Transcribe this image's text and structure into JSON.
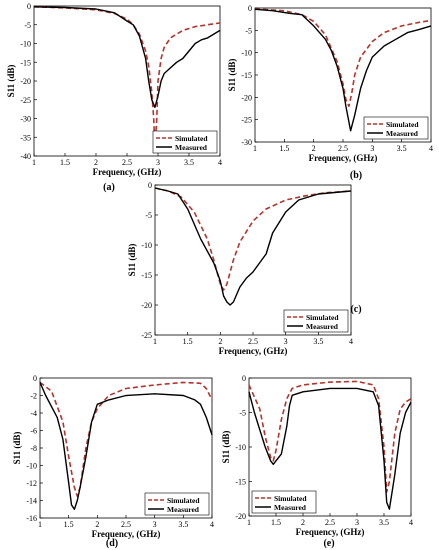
{
  "colors": {
    "simulated": "#b5332a",
    "measured": "#000000",
    "frame": "#000000",
    "bg": "#ffffff"
  },
  "chart_data": [
    {
      "id": "a",
      "type": "line",
      "panel_label": "(a)",
      "xlabel": "Frequency, (GHz)",
      "ylabel": "S11 (dB)",
      "xlim": [
        1,
        4
      ],
      "ylim": [
        -40,
        0
      ],
      "xticks": [
        "1",
        "1.5",
        "2",
        "2.5",
        "3",
        "3.5",
        "4"
      ],
      "yticks": [
        "0",
        "-5",
        "-10",
        "-15",
        "-20",
        "-25",
        "-30",
        "-35",
        "-40"
      ],
      "legend": {
        "position": "bottom-right",
        "entries": [
          "Simulated",
          "Measured"
        ]
      },
      "series": [
        {
          "name": "Simulated",
          "x": [
            1,
            1.5,
            2,
            2.3,
            2.5,
            2.6,
            2.7,
            2.8,
            2.85,
            2.9,
            2.93,
            2.95,
            2.98,
            3.0,
            3.05,
            3.1,
            3.2,
            3.4,
            3.6,
            3.8,
            4.0
          ],
          "y": [
            -0.2,
            -0.5,
            -1.0,
            -2.0,
            -3.5,
            -5.0,
            -7.5,
            -12,
            -16,
            -23,
            -30,
            -38,
            -30,
            -20,
            -14,
            -11,
            -8.5,
            -6.5,
            -5.5,
            -5.0,
            -4.5
          ]
        },
        {
          "name": "Measured",
          "x": [
            1,
            1.5,
            2,
            2.2,
            2.3,
            2.5,
            2.6,
            2.7,
            2.8,
            2.85,
            2.9,
            2.95,
            3.0,
            3.05,
            3.1,
            3.2,
            3.3,
            3.4,
            3.5,
            3.6,
            3.7,
            3.8,
            3.9,
            4.0
          ],
          "y": [
            -0.2,
            -0.4,
            -0.8,
            -1.5,
            -1.8,
            -4.0,
            -5.0,
            -8.0,
            -14,
            -20,
            -25,
            -27,
            -24,
            -20,
            -18,
            -16.5,
            -15,
            -14,
            -12,
            -10,
            -9,
            -8.5,
            -7.5,
            -6.5
          ]
        }
      ]
    },
    {
      "id": "b",
      "type": "line",
      "panel_label": "(b)",
      "xlabel": "Frequency, (GHz)",
      "ylabel": "S11 (dB)",
      "xlim": [
        1,
        4
      ],
      "ylim": [
        -30,
        0
      ],
      "xticks": [
        "1",
        "1.5",
        "2",
        "2.5",
        "3",
        "3.5",
        "4"
      ],
      "yticks": [
        "0",
        "-5",
        "-10",
        "-15",
        "-20",
        "-25",
        "-30"
      ],
      "legend": {
        "position": "bottom-right",
        "entries": [
          "Simulated",
          "Measured"
        ]
      },
      "series": [
        {
          "name": "Simulated",
          "x": [
            1,
            1.5,
            1.8,
            2.0,
            2.2,
            2.4,
            2.5,
            2.55,
            2.6,
            2.65,
            2.7,
            2.8,
            3.0,
            3.2,
            3.5,
            3.8,
            4.0
          ],
          "y": [
            -0.2,
            -0.6,
            -1.5,
            -3.0,
            -6.0,
            -12,
            -17,
            -20.5,
            -22,
            -19,
            -15,
            -11,
            -7.5,
            -5.5,
            -4.0,
            -3.2,
            -2.8
          ]
        },
        {
          "name": "Measured",
          "x": [
            1,
            1.3,
            1.6,
            1.8,
            2.0,
            2.2,
            2.3,
            2.4,
            2.5,
            2.55,
            2.6,
            2.63,
            2.7,
            2.8,
            2.9,
            3.0,
            3.2,
            3.4,
            3.6,
            3.8,
            4.0
          ],
          "y": [
            -0.3,
            -0.6,
            -1.2,
            -1.5,
            -4.0,
            -7.0,
            -9.5,
            -13,
            -18,
            -22,
            -25.5,
            -27.5,
            -24,
            -18,
            -14,
            -11,
            -8.5,
            -7.0,
            -5.5,
            -4.8,
            -4.0
          ]
        }
      ]
    },
    {
      "id": "c",
      "type": "line",
      "panel_label": "(c)",
      "xlabel": "Frequency, (GHz)",
      "ylabel": "S11 (dB)",
      "xlim": [
        1,
        4
      ],
      "ylim": [
        -25,
        0
      ],
      "xticks": [
        "1",
        "1.5",
        "2",
        "2.5",
        "3",
        "3.5",
        "4"
      ],
      "yticks": [
        "0",
        "-5",
        "-10",
        "-15",
        "-20",
        "-25"
      ],
      "legend": {
        "position": "bottom-right",
        "entries": [
          "Simulated",
          "Measured"
        ]
      },
      "series": [
        {
          "name": "Simulated",
          "x": [
            1,
            1.2,
            1.4,
            1.6,
            1.8,
            1.9,
            2.0,
            2.05,
            2.1,
            2.2,
            2.3,
            2.5,
            2.7,
            3.0,
            3.3,
            3.6,
            4.0
          ],
          "y": [
            -0.5,
            -1.0,
            -2.0,
            -4.5,
            -9.0,
            -12.5,
            -16.5,
            -17.5,
            -16.5,
            -12.5,
            -9.5,
            -6.0,
            -4.0,
            -2.5,
            -1.8,
            -1.3,
            -1.0
          ]
        },
        {
          "name": "Measured",
          "x": [
            1,
            1.2,
            1.35,
            1.5,
            1.7,
            1.9,
            2.0,
            2.05,
            2.1,
            2.15,
            2.2,
            2.3,
            2.4,
            2.5,
            2.6,
            2.7,
            2.8,
            3.0,
            3.2,
            3.5,
            4.0
          ],
          "y": [
            -0.5,
            -1.0,
            -1.5,
            -4.0,
            -9.0,
            -13.0,
            -16.0,
            -18.5,
            -19.5,
            -20.0,
            -19.5,
            -17.0,
            -15.5,
            -14.5,
            -13.0,
            -11.5,
            -8.0,
            -4.5,
            -2.5,
            -1.5,
            -1.0
          ]
        }
      ]
    },
    {
      "id": "d",
      "type": "line",
      "panel_label": "(d)",
      "xlabel": "Frequency, (GHz)",
      "ylabel": "S11 (dB)",
      "xlim": [
        1,
        4
      ],
      "ylim": [
        -16,
        0
      ],
      "xticks": [
        "1",
        "1.5",
        "2",
        "2.5",
        "3",
        "3.5",
        "4"
      ],
      "yticks": [
        "0",
        "-2",
        "-4",
        "-6",
        "-8",
        "-10",
        "-12",
        "-14",
        "-16"
      ],
      "legend": {
        "position": "bottom-right",
        "entries": [
          "Simulated",
          "Measured"
        ]
      },
      "series": [
        {
          "name": "Simulated",
          "x": [
            1,
            1.2,
            1.4,
            1.5,
            1.6,
            1.65,
            1.7,
            1.8,
            1.9,
            2.0,
            2.2,
            2.5,
            3.0,
            3.5,
            3.8,
            3.9,
            4.0
          ],
          "y": [
            -0.5,
            -1.5,
            -5.0,
            -9.0,
            -12.5,
            -13.5,
            -12.5,
            -8.0,
            -5.0,
            -3.5,
            -2.0,
            -1.2,
            -0.8,
            -0.5,
            -0.6,
            -1.2,
            -2.5
          ]
        },
        {
          "name": "Measured",
          "x": [
            1,
            1.1,
            1.3,
            1.4,
            1.5,
            1.55,
            1.6,
            1.65,
            1.7,
            1.8,
            1.9,
            2.0,
            2.2,
            2.5,
            3.0,
            3.5,
            3.7,
            3.8,
            3.9,
            4.0
          ],
          "y": [
            -0.5,
            -2.0,
            -4.5,
            -7.0,
            -12.0,
            -14.5,
            -15.0,
            -14.0,
            -12.5,
            -9.0,
            -5.0,
            -3.0,
            -2.5,
            -2.0,
            -1.8,
            -2.0,
            -2.5,
            -3.0,
            -4.5,
            -6.5
          ]
        }
      ]
    },
    {
      "id": "e",
      "type": "line",
      "panel_label": "(e)",
      "xlabel": "Frequency, (GHz)",
      "ylabel": "S11 (dB)",
      "xlim": [
        1,
        4
      ],
      "ylim": [
        -20,
        0
      ],
      "xticks": [
        "1",
        "1.5",
        "2",
        "2.5",
        "3",
        "3.5",
        "4"
      ],
      "yticks": [
        "0",
        "-5",
        "-10",
        "-15",
        "-20"
      ],
      "legend": {
        "position": "bottom-left",
        "entries": [
          "Simulated",
          "Measured"
        ]
      },
      "series": [
        {
          "name": "Simulated",
          "x": [
            1,
            1.2,
            1.3,
            1.4,
            1.45,
            1.5,
            1.6,
            1.7,
            1.8,
            2.0,
            2.5,
            3.0,
            3.3,
            3.4,
            3.5,
            3.55,
            3.6,
            3.7,
            3.8,
            3.9,
            4.0
          ],
          "y": [
            -1.0,
            -4.5,
            -8.5,
            -11.5,
            -12.0,
            -10.5,
            -6.0,
            -3.0,
            -1.5,
            -1.0,
            -0.6,
            -0.5,
            -1.0,
            -3.0,
            -10.0,
            -16.5,
            -15.0,
            -8.0,
            -4.5,
            -3.5,
            -3.0
          ]
        },
        {
          "name": "Measured",
          "x": [
            1,
            1.1,
            1.2,
            1.3,
            1.4,
            1.45,
            1.5,
            1.6,
            1.7,
            1.75,
            1.8,
            2.0,
            2.5,
            3.0,
            3.3,
            3.4,
            3.5,
            3.55,
            3.6,
            3.7,
            3.8,
            3.9,
            4.0
          ],
          "y": [
            -2.0,
            -5.0,
            -7.5,
            -10.0,
            -12.0,
            -12.5,
            -12.0,
            -11.0,
            -7.0,
            -4.0,
            -2.5,
            -2.0,
            -1.5,
            -1.5,
            -2.0,
            -4.0,
            -12.0,
            -18.0,
            -19.0,
            -14.0,
            -8.0,
            -5.0,
            -3.5
          ]
        }
      ]
    }
  ]
}
